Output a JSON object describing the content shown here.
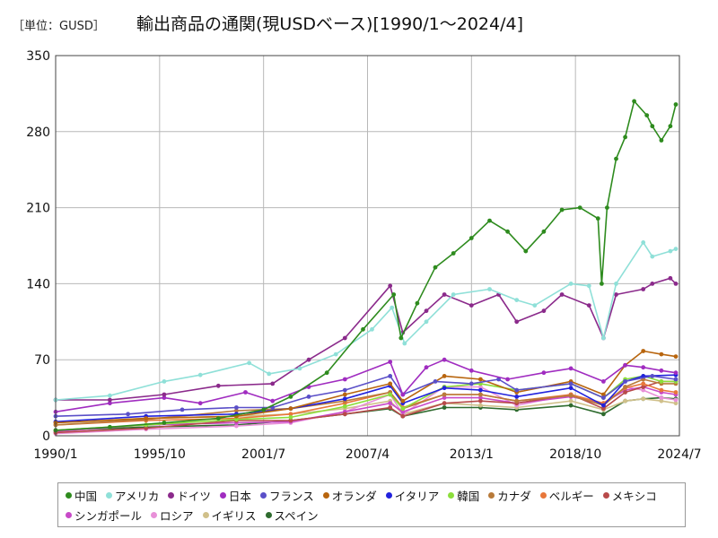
{
  "header": {
    "unit": "［単位：GUSD］",
    "title": "輸出商品の通関(現USDベース)[1990/1～2024/4]"
  },
  "chart_data": {
    "type": "line",
    "title": "輸出商品の通関(現USDベース)[1990/1～2024/4]",
    "ylabel": "［単位：GUSD］",
    "xlabel": "",
    "ylim": [
      0,
      350
    ],
    "xlim": [
      1990.0,
      2024.5
    ],
    "y_ticks": [
      0,
      70,
      140,
      210,
      280,
      350
    ],
    "y_tick_labels": [
      "0",
      "70",
      "140",
      "210",
      "280",
      "350"
    ],
    "x_ticks": [
      1990.0,
      1995.75,
      2001.5,
      2007.25,
      2013.0,
      2018.75,
      2024.5
    ],
    "x_tick_labels": [
      "1990/1",
      "1995/10",
      "2001/7",
      "2007/4",
      "2013/1",
      "2018/10",
      "2024/7"
    ],
    "grid": true,
    "legend_position": "bottom",
    "series": [
      {
        "name": "中国",
        "color": "#2e8b1e",
        "x": [
          1990.0,
          1993.0,
          1996.0,
          1999.0,
          2001.5,
          2003.0,
          2005.0,
          2007.0,
          2008.7,
          2009.1,
          2010.0,
          2011.0,
          2012.0,
          2013.0,
          2014.0,
          2015.0,
          2016.0,
          2017.0,
          2018.0,
          2019.0,
          2020.0,
          2020.2,
          2020.5,
          2021.0,
          2021.5,
          2022.0,
          2022.7,
          2023.0,
          2023.5,
          2024.0,
          2024.3
        ],
        "values": [
          5,
          8,
          12,
          16,
          24,
          36,
          58,
          98,
          130,
          90,
          122,
          155,
          168,
          182,
          198,
          188,
          170,
          188,
          208,
          210,
          200,
          140,
          210,
          255,
          275,
          308,
          295,
          285,
          272,
          285,
          305
        ]
      },
      {
        "name": "アメリカ",
        "color": "#8fe0d8",
        "x": [
          1990.0,
          1993.0,
          1996.0,
          1998.0,
          2000.7,
          2001.8,
          2003.5,
          2005.5,
          2007.5,
          2008.6,
          2009.3,
          2010.5,
          2012.0,
          2014.0,
          2015.5,
          2016.5,
          2018.5,
          2019.5,
          2020.3,
          2021.0,
          2022.5,
          2023.0,
          2024.0,
          2024.3
        ],
        "values": [
          33,
          37,
          50,
          56,
          67,
          57,
          62,
          75,
          98,
          118,
          85,
          105,
          130,
          135,
          125,
          120,
          140,
          138,
          90,
          140,
          178,
          165,
          170,
          172
        ]
      },
      {
        "name": "ドイツ",
        "color": "#8b2a8b",
        "x": [
          1990.0,
          1993.0,
          1996.0,
          1999.0,
          2002.0,
          2004.0,
          2006.0,
          2008.5,
          2009.2,
          2010.5,
          2011.5,
          2013.0,
          2014.5,
          2015.5,
          2017.0,
          2018.0,
          2019.5,
          2020.3,
          2021.0,
          2022.5,
          2023.0,
          2024.0,
          2024.3
        ],
        "values": [
          33,
          33,
          38,
          46,
          48,
          70,
          90,
          138,
          95,
          115,
          130,
          120,
          130,
          105,
          115,
          130,
          120,
          90,
          130,
          135,
          140,
          145,
          140
        ]
      },
      {
        "name": "日本",
        "color": "#a02cc0",
        "x": [
          1990.0,
          1993.0,
          1996.0,
          1998.0,
          2000.5,
          2002.0,
          2004.0,
          2006.0,
          2008.5,
          2009.2,
          2010.5,
          2011.5,
          2013.0,
          2015.0,
          2017.0,
          2018.5,
          2020.3,
          2021.5,
          2022.5,
          2023.5,
          2024.3
        ],
        "values": [
          22,
          30,
          35,
          30,
          40,
          32,
          45,
          52,
          68,
          38,
          63,
          70,
          60,
          52,
          58,
          62,
          50,
          65,
          63,
          60,
          58
        ]
      },
      {
        "name": "フランス",
        "color": "#5a4fc8",
        "x": [
          1990.0,
          1994.0,
          1997.0,
          2000.0,
          2002.0,
          2004.0,
          2006.0,
          2008.5,
          2009.2,
          2011.0,
          2013.0,
          2014.5,
          2015.5,
          2018.5,
          2020.3,
          2021.5,
          2023.0,
          2024.3
        ],
        "values": [
          18,
          20,
          24,
          26,
          26,
          36,
          42,
          55,
          38,
          50,
          48,
          52,
          42,
          48,
          35,
          50,
          55,
          52
        ]
      },
      {
        "name": "オランダ",
        "color": "#b8650e",
        "x": [
          1990.0,
          1995.0,
          2000.0,
          2003.0,
          2006.0,
          2008.5,
          2009.2,
          2011.5,
          2013.5,
          2015.5,
          2018.5,
          2020.3,
          2021.5,
          2022.5,
          2023.5,
          2024.3
        ],
        "values": [
          12,
          16,
          18,
          25,
          38,
          48,
          32,
          55,
          52,
          40,
          50,
          38,
          65,
          78,
          75,
          73
        ]
      },
      {
        "name": "イタリア",
        "color": "#2222dd",
        "x": [
          1990.0,
          1995.0,
          2000.0,
          2003.0,
          2006.0,
          2008.5,
          2009.2,
          2011.5,
          2013.5,
          2015.5,
          2018.5,
          2020.3,
          2021.5,
          2022.5,
          2024.3
        ],
        "values": [
          13,
          18,
          20,
          25,
          34,
          46,
          30,
          44,
          42,
          36,
          44,
          28,
          50,
          55,
          56
        ]
      },
      {
        "name": "韓国",
        "color": "#8cde3c",
        "x": [
          1990.0,
          1995.0,
          2000.0,
          2003.0,
          2006.0,
          2008.5,
          2009.2,
          2011.5,
          2013.5,
          2015.5,
          2018.5,
          2020.3,
          2021.5,
          2022.5,
          2023.5,
          2024.3
        ],
        "values": [
          5,
          10,
          15,
          17,
          27,
          38,
          25,
          45,
          48,
          42,
          48,
          35,
          52,
          55,
          50,
          50
        ]
      },
      {
        "name": "カナダ",
        "color": "#b87a3a",
        "x": [
          1990.0,
          1995.0,
          2000.0,
          2003.0,
          2006.0,
          2008.5,
          2009.2,
          2011.5,
          2013.5,
          2015.5,
          2018.5,
          2020.3,
          2021.5,
          2022.5,
          2023.5,
          2024.3
        ],
        "values": [
          10,
          15,
          23,
          25,
          32,
          40,
          25,
          38,
          38,
          32,
          37,
          28,
          45,
          52,
          48,
          48
        ]
      },
      {
        "name": "ベルギー",
        "color": "#e8773a",
        "x": [
          1990.0,
          1995.0,
          2000.0,
          2003.0,
          2006.0,
          2008.5,
          2009.2,
          2011.5,
          2013.5,
          2015.5,
          2018.5,
          2020.3,
          2021.5,
          2022.5,
          2023.5,
          2024.3
        ],
        "values": [
          10,
          14,
          16,
          20,
          30,
          40,
          26,
          38,
          38,
          32,
          38,
          30,
          44,
          48,
          42,
          40
        ]
      },
      {
        "name": "メキシコ",
        "color": "#b84a4a",
        "x": [
          1990.0,
          1995.0,
          2000.0,
          2003.0,
          2006.0,
          2008.5,
          2009.2,
          2011.5,
          2013.5,
          2015.5,
          2018.5,
          2020.3,
          2021.5,
          2022.5,
          2023.5,
          2024.3
        ],
        "values": [
          3,
          7,
          14,
          14,
          20,
          26,
          18,
          30,
          32,
          30,
          38,
          25,
          40,
          45,
          50,
          50
        ]
      },
      {
        "name": "シンガポール",
        "color": "#c84ac8",
        "x": [
          1990.0,
          1995.0,
          2000.0,
          2003.0,
          2006.0,
          2008.5,
          2009.2,
          2011.5,
          2013.5,
          2015.5,
          2018.5,
          2020.3,
          2021.5,
          2022.5,
          2023.5,
          2024.3
        ],
        "values": [
          4,
          10,
          12,
          13,
          22,
          30,
          22,
          35,
          35,
          30,
          36,
          30,
          42,
          45,
          40,
          38
        ]
      },
      {
        "name": "ロシア",
        "color": "#e890d8",
        "x": [
          1990.0,
          1995.0,
          2000.0,
          2003.0,
          2006.0,
          2008.5,
          2009.2,
          2011.5,
          2013.5,
          2015.5,
          2018.5,
          2020.3,
          2021.5,
          2022.5,
          2023.5,
          2024.3
        ],
        "values": [
          2,
          6,
          9,
          12,
          22,
          38,
          20,
          45,
          45,
          28,
          38,
          28,
          45,
          42,
          35,
          33
        ]
      },
      {
        "name": "イギリス",
        "color": "#d0c08a",
        "x": [
          1990.0,
          1995.0,
          2000.0,
          2003.0,
          2006.0,
          2008.5,
          2009.2,
          2011.5,
          2013.5,
          2015.5,
          2018.5,
          2020.3,
          2021.5,
          2022.5,
          2023.5,
          2024.3
        ],
        "values": [
          12,
          16,
          18,
          20,
          25,
          32,
          20,
          30,
          28,
          26,
          32,
          24,
          32,
          34,
          32,
          30
        ]
      },
      {
        "name": "スペイン",
        "color": "#2e6b2e",
        "x": [
          1990.0,
          1995.0,
          2000.0,
          2003.0,
          2006.0,
          2008.5,
          2009.2,
          2011.5,
          2013.5,
          2015.5,
          2018.5,
          2020.3,
          2021.5,
          2022.5,
          2023.5,
          2024.3
        ],
        "values": [
          5,
          8,
          10,
          14,
          20,
          25,
          18,
          26,
          26,
          24,
          28,
          20,
          32,
          34,
          35,
          34
        ]
      }
    ]
  }
}
